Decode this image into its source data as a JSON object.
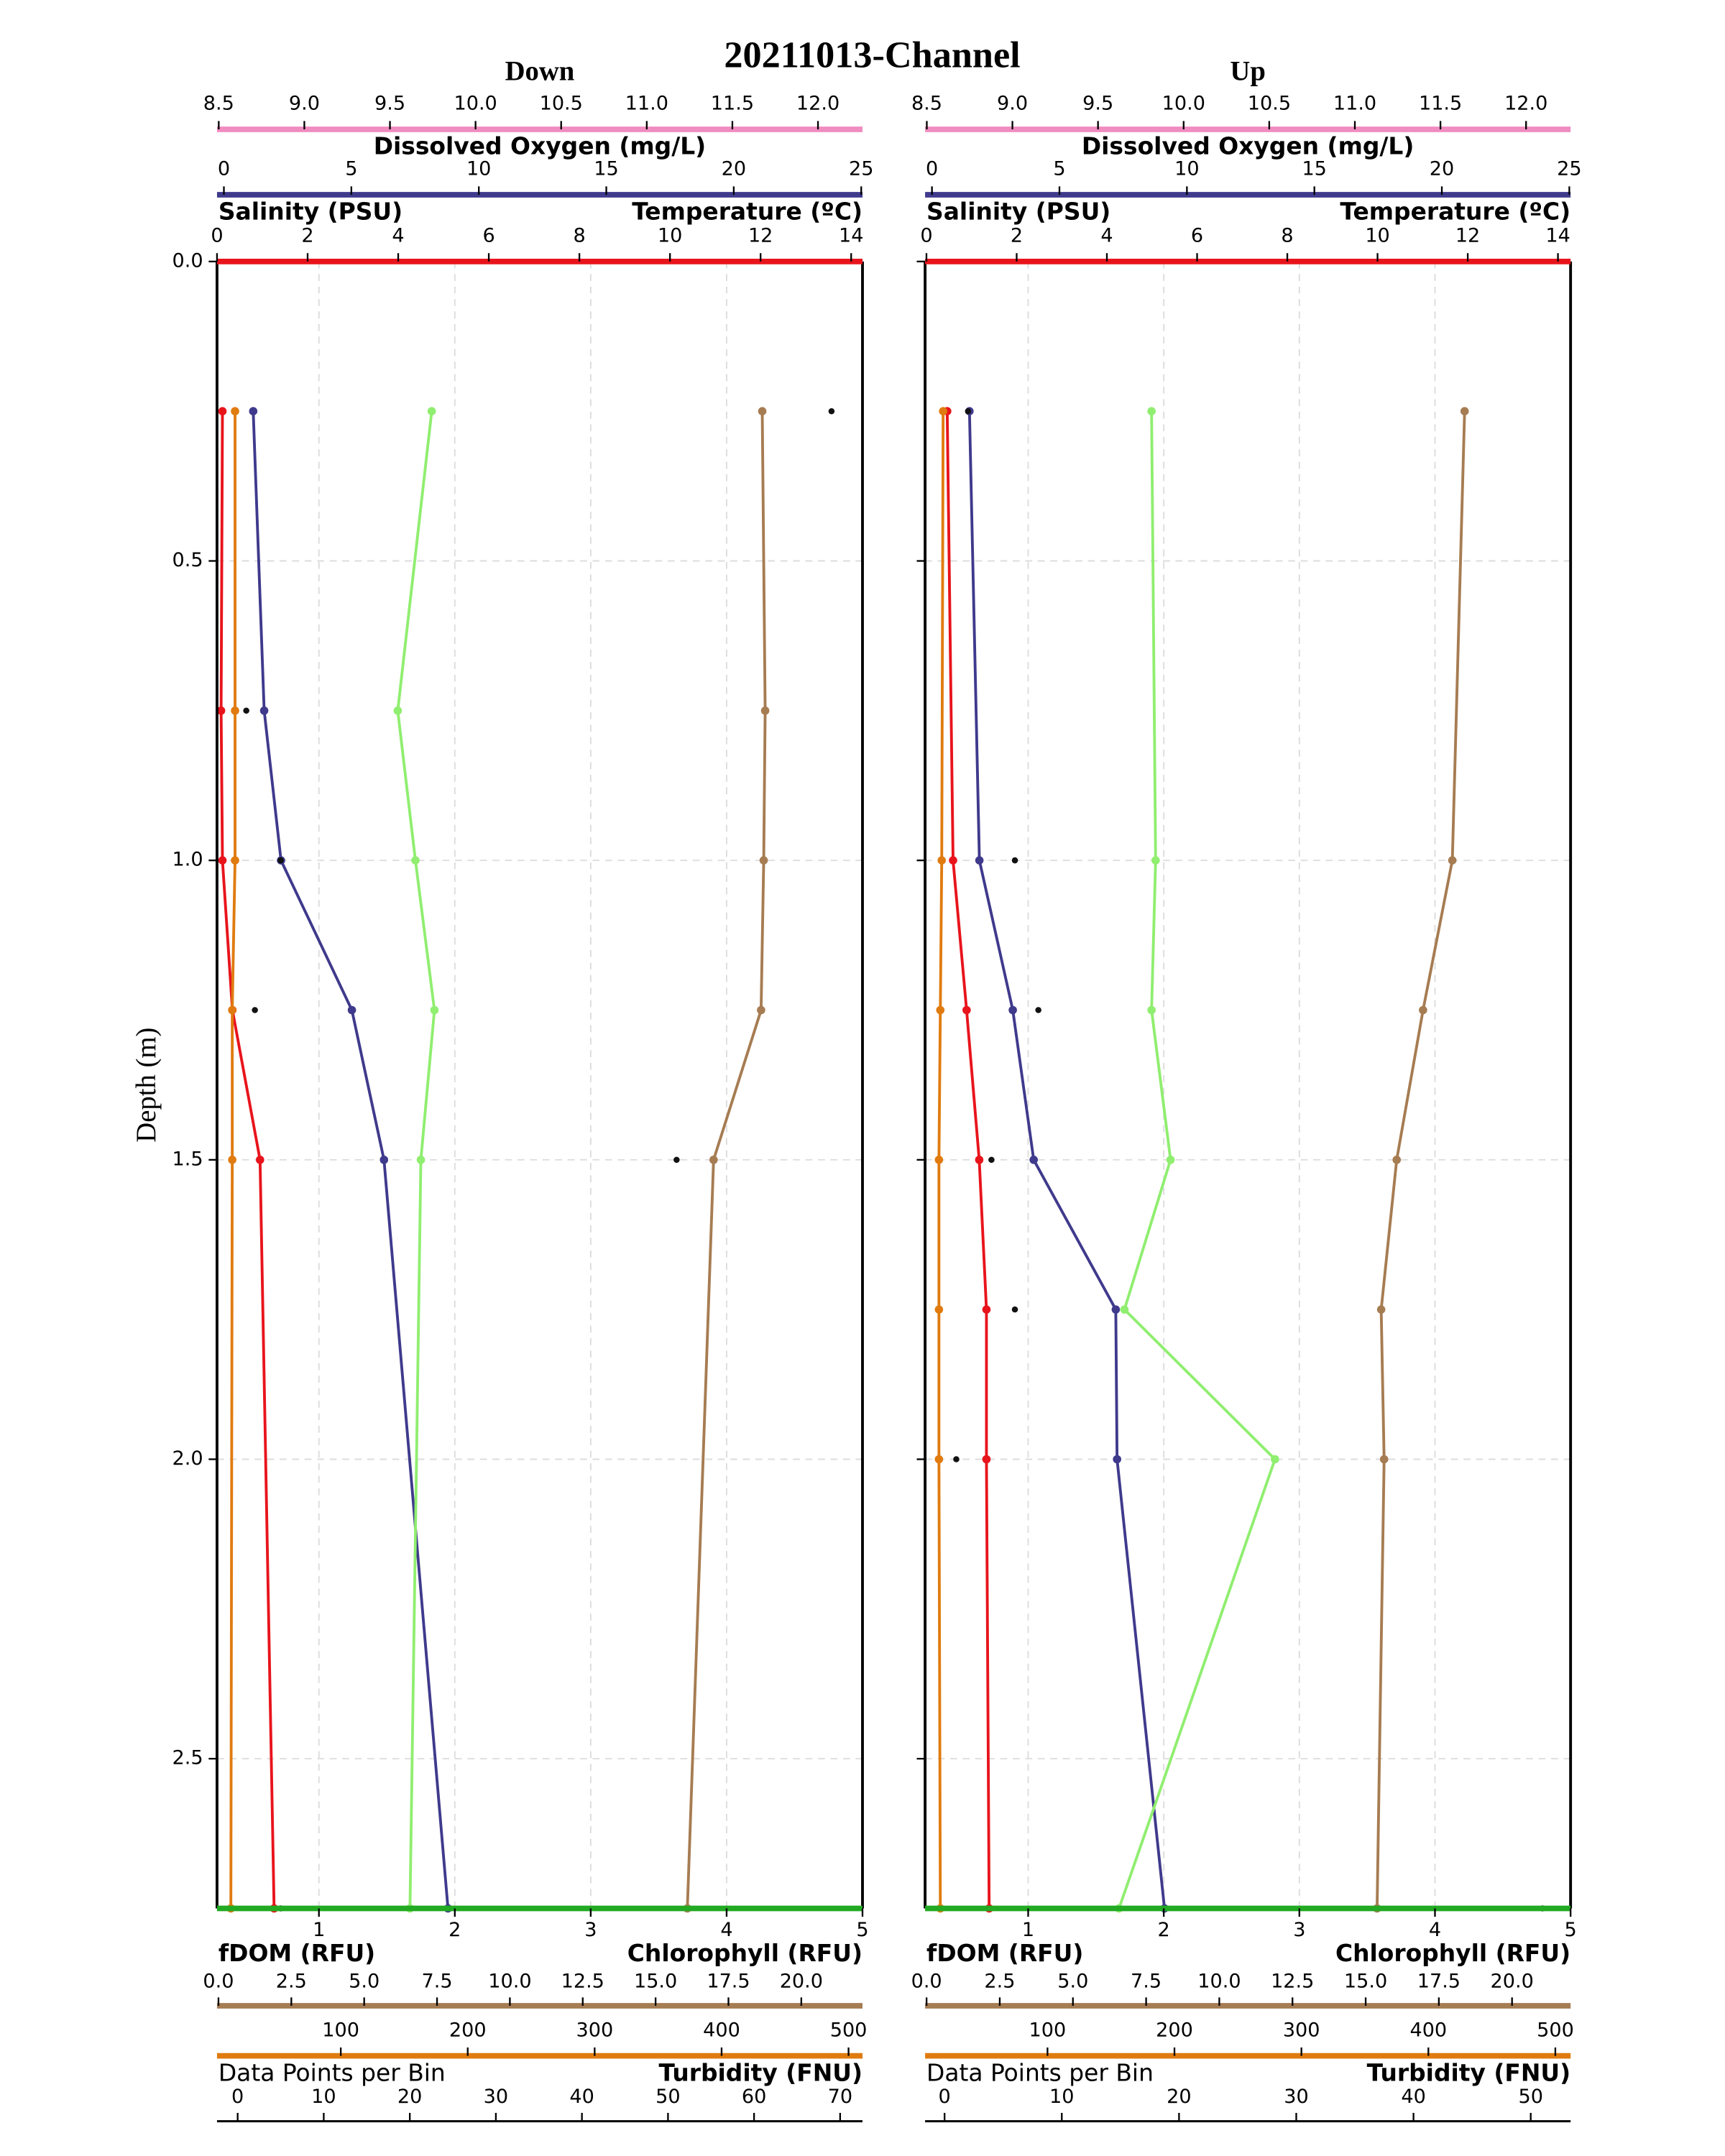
{
  "title": "20211013-Channel",
  "chart_data": [
    {
      "type": "line",
      "title": "Down",
      "ylabel": "Depth (m)",
      "show_ytick_labels": true,
      "y_inverted": true,
      "grid": true,
      "y": [
        0.25,
        0.75,
        1.0,
        1.25,
        1.5,
        2.75
      ],
      "ylim": [
        0,
        2.75
      ],
      "yticks": [
        {
          "value": 0,
          "label": "0.0"
        },
        0.5,
        {
          "value": 1,
          "label": "1.0"
        },
        1.5,
        {
          "value": 2,
          "label": "2.0"
        },
        2.5
      ],
      "axes": [
        {
          "label": "Dissolved Oxygen (mg/L)",
          "color": "#f08cc0",
          "xlim": [
            8.49,
            12.26
          ],
          "xticks": [
            8.5,
            {
              "value": 9,
              "label": "9.0"
            },
            9.5,
            {
              "value": 10,
              "label": "10.0"
            },
            10.5,
            {
              "value": 11,
              "label": "11.0"
            },
            11.5,
            {
              "value": 12,
              "label": "12.0"
            }
          ]
        },
        {
          "label": "Salinity (PSU)",
          "color": "#3f3a8c",
          "xlim": [
            -0.27,
            25.05
          ],
          "xticks": [
            0,
            5,
            10,
            15,
            20,
            25
          ]
        },
        {
          "label": "Temperature (ºC)",
          "color": "#e8141c",
          "xlim": [
            0,
            14.25
          ],
          "xticks": [
            0,
            2,
            4,
            6,
            8,
            10,
            12,
            14
          ]
        },
        {
          "label": "Chlorophyll (RFU)",
          "color": "#22aa22",
          "grid": true,
          "xlim": [
            0.25,
            5.0
          ],
          "xticks": [
            1,
            2,
            3,
            4,
            5
          ]
        },
        {
          "label": "fDOM (RFU)",
          "color": "#a67c52",
          "xlim": [
            -0.05,
            22.1
          ],
          "xticks": [
            {
              "value": 0,
              "label": "0.0"
            },
            2.5,
            {
              "value": 5,
              "label": "5.0"
            },
            7.5,
            {
              "value": 10,
              "label": "10.0"
            },
            12.5,
            {
              "value": 15,
              "label": "15.0"
            },
            17.5,
            {
              "value": 20,
              "label": "20.0"
            }
          ]
        },
        {
          "label": "Turbidity (FNU)",
          "color": "#e07b10",
          "xlim": [
            2.5,
            511
          ],
          "xticks": [
            100,
            200,
            300,
            400,
            500
          ]
        },
        {
          "label": "Data Points per Bin",
          "color": "#000000",
          "xlim": [
            -2.4,
            72.6
          ],
          "xticks": [
            0,
            10,
            20,
            30,
            40,
            50,
            60,
            70
          ]
        }
      ],
      "series": [
        {
          "name": "Temperature (ºC)",
          "color": "#e8141c",
          "axis": 2,
          "line": true,
          "values": [
            0.12,
            0.09,
            0.12,
            0.34,
            0.95,
            1.26
          ]
        },
        {
          "name": "Salinity (PSU)",
          "color": "#3f3a8c",
          "axis": 1,
          "line": true,
          "values": [
            1.15,
            1.58,
            2.24,
            5.02,
            6.28,
            8.79
          ]
        },
        {
          "name": "Chlorophyll (RFU)",
          "color": "#90ee70",
          "axis": 3,
          "line": true,
          "values": [
            1.83,
            1.58,
            1.71,
            1.85,
            1.75,
            1.67
          ]
        },
        {
          "name": "fDOM (RFU)",
          "color": "#a67c52",
          "axis": 4,
          "line": true,
          "values": [
            18.66,
            18.76,
            18.71,
            18.62,
            16.99,
            16.09
          ]
        },
        {
          "name": "Turbidity (FNU)",
          "color": "#e07b10",
          "axis": 5,
          "line": true,
          "values": [
            16.7,
            16.7,
            16.7,
            14.5,
            14.5,
            13.4
          ]
        },
        {
          "name": "Data Points per Bin",
          "color": "#111111",
          "axis": 6,
          "line": false,
          "values": [
            69,
            1,
            5,
            2,
            51,
            5
          ]
        }
      ]
    },
    {
      "type": "line",
      "title": "Up",
      "show_ytick_labels": false,
      "y_inverted": true,
      "grid": true,
      "y": [
        0.25,
        1.0,
        1.25,
        1.5,
        1.75,
        2.0,
        2.75
      ],
      "ylim": [
        0,
        2.75
      ],
      "yticks": [
        0,
        0.5,
        1,
        1.5,
        2,
        2.5
      ],
      "axes": [
        {
          "label": "Dissolved Oxygen (mg/L)",
          "color": "#f08cc0",
          "xlim": [
            8.49,
            12.26
          ],
          "xticks": [
            8.5,
            {
              "value": 9,
              "label": "9.0"
            },
            9.5,
            {
              "value": 10,
              "label": "10.0"
            },
            10.5,
            {
              "value": 11,
              "label": "11.0"
            },
            11.5,
            {
              "value": 12,
              "label": "12.0"
            }
          ]
        },
        {
          "label": "Salinity (PSU)",
          "color": "#3f3a8c",
          "xlim": [
            -0.27,
            25.05
          ],
          "xticks": [
            0,
            5,
            10,
            15,
            20,
            25
          ]
        },
        {
          "label": "Temperature (ºC)",
          "color": "#e8141c",
          "xlim": [
            -0.03,
            14.28
          ],
          "xticks": [
            0,
            2,
            4,
            6,
            8,
            10,
            12,
            14
          ]
        },
        {
          "label": "Chlorophyll (RFU)",
          "color": "#22aa22",
          "grid": true,
          "xlim": [
            0.24,
            5.0
          ],
          "xticks": [
            1,
            2,
            3,
            4,
            5
          ]
        },
        {
          "label": "fDOM (RFU)",
          "color": "#a67c52",
          "xlim": [
            -0.05,
            22.0
          ],
          "xticks": [
            {
              "value": 0,
              "label": "0.0"
            },
            2.5,
            {
              "value": 5,
              "label": "5.0"
            },
            7.5,
            {
              "value": 10,
              "label": "10.0"
            },
            12.5,
            {
              "value": 15,
              "label": "15.0"
            },
            17.5,
            {
              "value": 20,
              "label": "20.0"
            }
          ]
        },
        {
          "label": "Turbidity (FNU)",
          "color": "#e07b10",
          "xlim": [
            3.6,
            512
          ],
          "xticks": [
            100,
            200,
            300,
            400,
            500
          ]
        },
        {
          "label": "Data Points per Bin",
          "color": "#000000",
          "xlim": [
            -1.66,
            53.4
          ],
          "xticks": [
            0,
            10,
            20,
            30,
            40,
            50
          ]
        }
      ],
      "series": [
        {
          "name": "Temperature (ºC)",
          "color": "#e8141c",
          "axis": 2,
          "line": true,
          "values": [
            0.46,
            0.59,
            0.89,
            1.17,
            1.33,
            1.33,
            1.39
          ]
        },
        {
          "name": "Salinity (PSU)",
          "color": "#3f3a8c",
          "axis": 1,
          "line": true,
          "values": [
            1.47,
            1.86,
            3.17,
            3.99,
            7.21,
            7.26,
            9.12
          ]
        },
        {
          "name": "Chlorophyll (RFU)",
          "color": "#90ee70",
          "axis": 3,
          "line": true,
          "values": [
            1.91,
            1.94,
            1.91,
            2.05,
            1.71,
            2.82,
            1.67
          ]
        },
        {
          "name": "fDOM (RFU)",
          "color": "#a67c52",
          "axis": 4,
          "line": true,
          "values": [
            18.38,
            17.96,
            16.96,
            16.06,
            15.53,
            15.63,
            15.39
          ]
        },
        {
          "name": "Turbidity (FNU)",
          "color": "#e07b10",
          "axis": 5,
          "line": true,
          "values": [
            17.8,
            16.7,
            15.6,
            14.5,
            14.5,
            14.5,
            15.6
          ]
        },
        {
          "name": "Data Points per Bin",
          "color": "#111111",
          "axis": 6,
          "line": false,
          "values": [
            2,
            6,
            8,
            4,
            6,
            1,
            51
          ]
        }
      ]
    }
  ]
}
